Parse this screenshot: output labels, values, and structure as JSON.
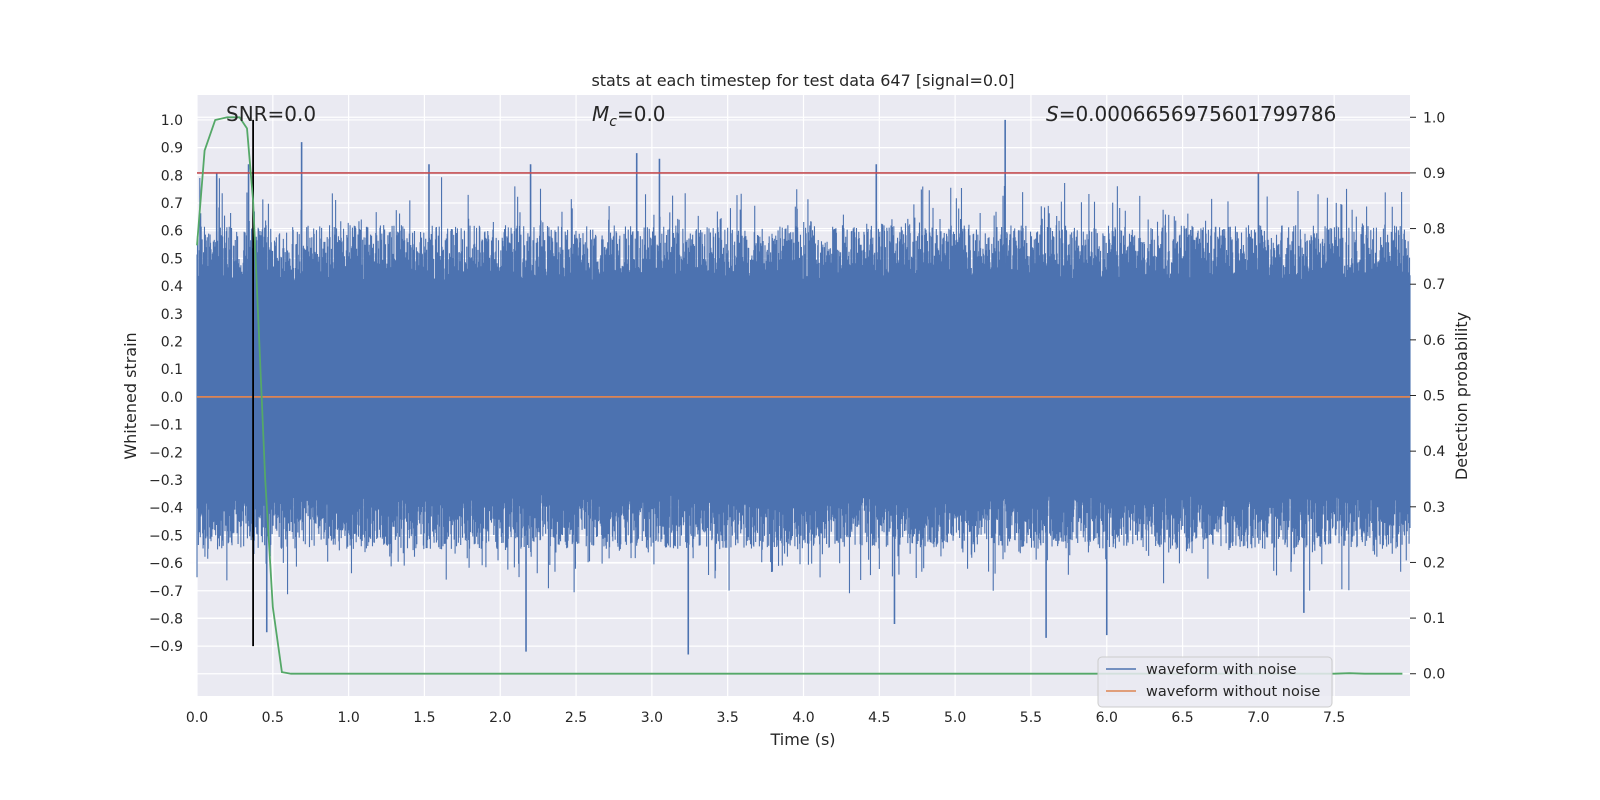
{
  "chart_data": {
    "type": "line",
    "title": "stats at each timestep for test data 647 [signal=0.0]",
    "xlabel": "Time (s)",
    "ylabel_left": "Whitened strain",
    "ylabel_right": "Detection probability",
    "xlim": [
      0.0,
      8.0
    ],
    "ylim_left": [
      -1.08,
      1.09
    ],
    "ylim_right": [
      -0.04,
      1.04
    ],
    "x_ticks": [
      "0.0",
      "0.5",
      "1.0",
      "1.5",
      "2.0",
      "2.5",
      "3.0",
      "3.5",
      "4.0",
      "4.5",
      "5.0",
      "5.5",
      "6.0",
      "6.5",
      "7.0",
      "7.5"
    ],
    "y_ticks_left": [
      "1.0",
      "0.9",
      "0.8",
      "0.7",
      "0.6",
      "0.5",
      "0.4",
      "0.3",
      "0.2",
      "0.1",
      "0.0",
      "-0.1",
      "-0.2",
      "-0.3",
      "-0.4",
      "-0.5",
      "-0.6",
      "-0.7",
      "-0.8",
      "-0.9"
    ],
    "y_ticks_right": [
      "1.0",
      "0.9",
      "0.8",
      "0.7",
      "0.6",
      "0.5",
      "0.4",
      "0.3",
      "0.2",
      "0.1",
      "0.0"
    ],
    "annotations": {
      "snr": "SNR=0.0",
      "mc_symbol": "M",
      "mc_sub": "c",
      "mc_value": "=0.0",
      "s_symbol": "S",
      "s_value": "=0.000665697560179978​6"
    },
    "series": [
      {
        "name": "waveform with noise",
        "color": "#4c72b0",
        "axis": "left",
        "description_range": [
          -0.92,
          1.0
        ],
        "peaks_positive": [
          {
            "x": 0.13,
            "y": 0.81
          },
          {
            "x": 0.34,
            "y": 0.84
          },
          {
            "x": 0.69,
            "y": 0.92
          },
          {
            "x": 1.53,
            "y": 0.84
          },
          {
            "x": 2.2,
            "y": 0.84
          },
          {
            "x": 2.9,
            "y": 0.88
          },
          {
            "x": 3.05,
            "y": 0.86
          },
          {
            "x": 4.48,
            "y": 0.84
          },
          {
            "x": 5.33,
            "y": 1.0
          },
          {
            "x": 7.0,
            "y": 0.81
          }
        ],
        "peaks_negative": [
          {
            "x": 0.46,
            "y": -0.85
          },
          {
            "x": 2.17,
            "y": -0.92
          },
          {
            "x": 3.24,
            "y": -0.93
          },
          {
            "x": 4.6,
            "y": -0.82
          },
          {
            "x": 5.6,
            "y": -0.87
          },
          {
            "x": 6.0,
            "y": -0.86
          },
          {
            "x": 7.3,
            "y": -0.78
          }
        ]
      },
      {
        "name": "waveform without noise",
        "color": "#dd8452",
        "axis": "left",
        "x": [
          0.0,
          8.0
        ],
        "y": [
          0.0,
          0.0
        ]
      },
      {
        "name": "detection probability",
        "color": "#55a868",
        "axis": "right",
        "x": [
          0.0,
          0.05,
          0.12,
          0.2,
          0.28,
          0.33,
          0.37,
          0.41,
          0.45,
          0.5,
          0.56,
          0.62,
          1.0,
          2.0,
          3.0,
          4.0,
          5.0,
          6.0,
          7.0,
          7.5,
          7.6,
          7.7,
          7.95
        ],
        "y": [
          0.77,
          0.94,
          0.995,
          1.0,
          1.0,
          0.98,
          0.85,
          0.6,
          0.35,
          0.12,
          0.003,
          0.0,
          0.0,
          0.0,
          0.0,
          0.0,
          0.0,
          0.0,
          0.0,
          0.0,
          0.001,
          0.0,
          0.0
        ]
      }
    ],
    "threshold_line": {
      "axis": "right",
      "y": 0.9,
      "color": "#c44e52"
    },
    "marker_line": {
      "x": 0.37,
      "y_from": -0.9,
      "y_to": 1.0,
      "color": "#000000"
    },
    "legend": {
      "location": "bottom-right",
      "entries": [
        {
          "label": "waveform with noise",
          "color": "#4c72b0"
        },
        {
          "label": "waveform without noise",
          "color": "#dd8452"
        }
      ]
    }
  }
}
